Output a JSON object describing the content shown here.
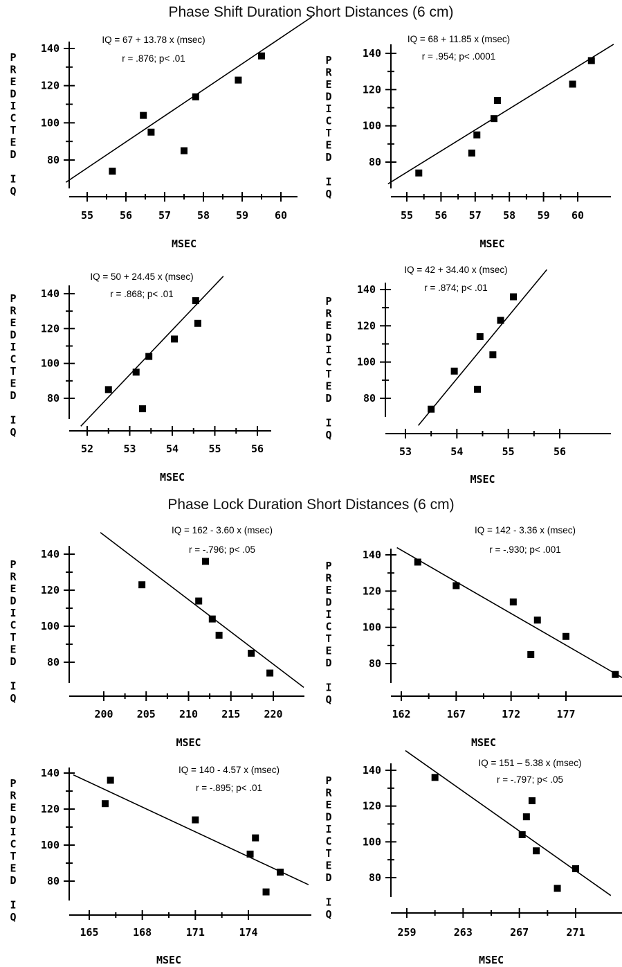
{
  "sections": [
    {
      "title": "Phase Shift Duration Short Distances (6 cm)"
    },
    {
      "title": "Phase Lock Duration Short Distances (6 cm)"
    }
  ],
  "chart_data": [
    {
      "type": "scatter",
      "xlabel": "MSEC",
      "ylabel": [
        "PREDICTED",
        "IQ"
      ],
      "annotation": [
        "IQ = 67 + 13.78 x (msec)",
        "r = .876; p< .01"
      ],
      "xlim": [
        54.6,
        60.4
      ],
      "ylim": [
        64,
        146
      ],
      "xticks": [
        55,
        56,
        57,
        58,
        59,
        60
      ],
      "xtick_labels": [
        "55",
        "56",
        "57",
        "58",
        "59",
        "60"
      ],
      "yticks": [
        80,
        100,
        120,
        140
      ],
      "ytick_labels": [
        "80",
        "100",
        "120",
        "140"
      ],
      "points": [
        [
          55.65,
          74
        ],
        [
          56.45,
          104
        ],
        [
          56.65,
          95
        ],
        [
          57.5,
          85
        ],
        [
          57.8,
          114
        ],
        [
          58.9,
          123
        ],
        [
          59.5,
          136
        ]
      ],
      "fit": [
        [
          54.45,
          68
        ],
        [
          60.8,
          157
        ]
      ]
    },
    {
      "type": "scatter",
      "xlabel": "MSEC",
      "ylabel": [
        "PREDICTED",
        "IQ"
      ],
      "annotation": [
        "IQ = 68 + 11.85 x (msec)",
        "r = .954; p< .0001"
      ],
      "xlim": [
        54.8,
        61.0
      ],
      "ylim": [
        64,
        146
      ],
      "xticks": [
        55,
        56,
        57,
        58,
        59,
        60
      ],
      "xtick_labels": [
        "55",
        "56",
        "57",
        "58",
        "59",
        "60"
      ],
      "yticks": [
        80,
        100,
        120,
        140
      ],
      "ytick_labels": [
        "80",
        "100",
        "120",
        "140"
      ],
      "points": [
        [
          55.35,
          74
        ],
        [
          56.9,
          85
        ],
        [
          57.05,
          95
        ],
        [
          57.55,
          104
        ],
        [
          57.65,
          114
        ],
        [
          59.85,
          123
        ],
        [
          60.4,
          136
        ]
      ],
      "fit": [
        [
          54.45,
          68
        ],
        [
          61.05,
          145
        ]
      ]
    },
    {
      "type": "scatter",
      "xlabel": "MSEC",
      "ylabel": [
        "PREDICTED",
        "IQ"
      ],
      "annotation": [
        "IQ = 50 + 24.45 x (msec)",
        "r = .868; p< .01"
      ],
      "xlim": [
        51.75,
        57.0
      ],
      "ylim": [
        64,
        146
      ],
      "xticks": [
        52,
        53,
        54,
        55,
        56
      ],
      "xtick_labels": [
        "52",
        "53",
        "54",
        "55",
        "56"
      ],
      "yticks": [
        80,
        100,
        120,
        140
      ],
      "ytick_labels": [
        "80",
        "100",
        "120",
        "140"
      ],
      "points": [
        [
          52.5,
          85
        ],
        [
          53.15,
          95
        ],
        [
          53.3,
          74
        ],
        [
          53.45,
          104
        ],
        [
          54.05,
          114
        ],
        [
          54.55,
          136
        ],
        [
          54.6,
          123
        ]
      ],
      "fit": [
        [
          51.85,
          64
        ],
        [
          55.2,
          150
        ]
      ]
    },
    {
      "type": "scatter",
      "xlabel": "MSEC",
      "ylabel": [
        "PREDICTED",
        "IQ"
      ],
      "annotation": [
        "IQ = 42 + 34.40 x (msec)",
        "r = .874; p< .01"
      ],
      "xlim": [
        52.9,
        57.0
      ],
      "ylim": [
        64,
        146
      ],
      "xticks": [
        53,
        54,
        55,
        56
      ],
      "xtick_labels": [
        "53",
        "54",
        "55",
        "56"
      ],
      "yticks": [
        80,
        100,
        120,
        140
      ],
      "ytick_labels": [
        "80",
        "100",
        "120",
        "140"
      ],
      "points": [
        [
          53.5,
          74
        ],
        [
          53.95,
          95
        ],
        [
          54.4,
          85
        ],
        [
          54.45,
          114
        ],
        [
          54.7,
          104
        ],
        [
          54.85,
          123
        ],
        [
          55.1,
          136
        ]
      ],
      "fit": [
        [
          53.25,
          65
        ],
        [
          55.75,
          151
        ]
      ]
    },
    {
      "type": "scatter",
      "xlabel": "MSEC",
      "ylabel": [
        "PREDICTED",
        "IQ"
      ],
      "annotation": [
        "IQ = 162 - 3.60 x (msec)",
        "r = -.796; p< .05"
      ],
      "xlim": [
        197.5,
        224.0
      ],
      "ylim": [
        64,
        146
      ],
      "xticks": [
        200,
        205,
        210,
        215,
        220
      ],
      "xtick_labels": [
        "200",
        "205",
        "210",
        "215",
        "220"
      ],
      "yticks": [
        80,
        100,
        120,
        140
      ],
      "ytick_labels": [
        "80",
        "100",
        "120",
        "140"
      ],
      "points": [
        [
          204.5,
          123
        ],
        [
          211.2,
          114
        ],
        [
          212.0,
          136
        ],
        [
          212.8,
          104
        ],
        [
          213.6,
          95
        ],
        [
          217.4,
          85
        ],
        [
          219.6,
          74
        ]
      ],
      "fit": [
        [
          199.6,
          152
        ],
        [
          223.6,
          66
        ]
      ]
    },
    {
      "type": "scatter",
      "xlabel": "MSEC",
      "ylabel": [
        "PREDICTED",
        "IQ"
      ],
      "annotation": [
        "IQ = 142 - 3.36 x (msec)",
        "r = -.930; p< .001"
      ],
      "xlim": [
        161.6,
        182.0
      ],
      "ylim": [
        64,
        146
      ],
      "xticks": [
        162,
        167,
        172,
        177
      ],
      "xtick_labels": [
        "162",
        "167",
        "172",
        "177"
      ],
      "yticks": [
        80,
        100,
        120,
        140
      ],
      "ytick_labels": [
        "80",
        "100",
        "120",
        "140"
      ],
      "points": [
        [
          163.5,
          136
        ],
        [
          167.0,
          123
        ],
        [
          172.2,
          114
        ],
        [
          173.8,
          85
        ],
        [
          174.4,
          104
        ],
        [
          177.0,
          95
        ],
        [
          181.5,
          74
        ]
      ],
      "fit": [
        [
          161.6,
          144
        ],
        [
          182.2,
          72
        ]
      ]
    },
    {
      "type": "scatter",
      "xlabel": "MSEC",
      "ylabel": [
        "PREDICTED",
        "IQ"
      ],
      "annotation": [
        "IQ = 140 - 4.57 x (msec)",
        "r = -.895; p< .01"
      ],
      "xlim": [
        164.1,
        177.4
      ],
      "ylim": [
        64,
        146
      ],
      "xticks": [
        165,
        168,
        171,
        174
      ],
      "xtick_labels": [
        "165",
        "168",
        "171",
        "174"
      ],
      "yticks": [
        80,
        100,
        120,
        140
      ],
      "ytick_labels": [
        "80",
        "100",
        "120",
        "140"
      ],
      "points": [
        [
          165.9,
          123
        ],
        [
          166.2,
          136
        ],
        [
          171.0,
          114
        ],
        [
          174.1,
          95
        ],
        [
          174.4,
          104
        ],
        [
          175.0,
          74
        ],
        [
          175.8,
          85
        ]
      ],
      "fit": [
        [
          164.1,
          139
        ],
        [
          177.4,
          78
        ]
      ]
    },
    {
      "type": "scatter",
      "xlabel": "MSEC",
      "ylabel": [
        "PREDICTED",
        "IQ"
      ],
      "annotation": [
        "IQ = 151 – 5.38 x (msec)",
        "r = -.797; p< .05"
      ],
      "xlim": [
        258.2,
        273.3
      ],
      "ylim": [
        64,
        146
      ],
      "xticks": [
        259,
        263,
        267,
        271
      ],
      "xtick_labels": [
        "259",
        "263",
        "267",
        "271"
      ],
      "yticks": [
        80,
        100,
        120,
        140
      ],
      "ytick_labels": [
        "80",
        "100",
        "120",
        "140"
      ],
      "points": [
        [
          261.0,
          136
        ],
        [
          267.2,
          104
        ],
        [
          267.5,
          114
        ],
        [
          267.9,
          123
        ],
        [
          268.2,
          95
        ],
        [
          269.7,
          74
        ],
        [
          271.0,
          85
        ]
      ],
      "fit": [
        [
          258.9,
          151
        ],
        [
          273.5,
          70
        ]
      ]
    }
  ]
}
